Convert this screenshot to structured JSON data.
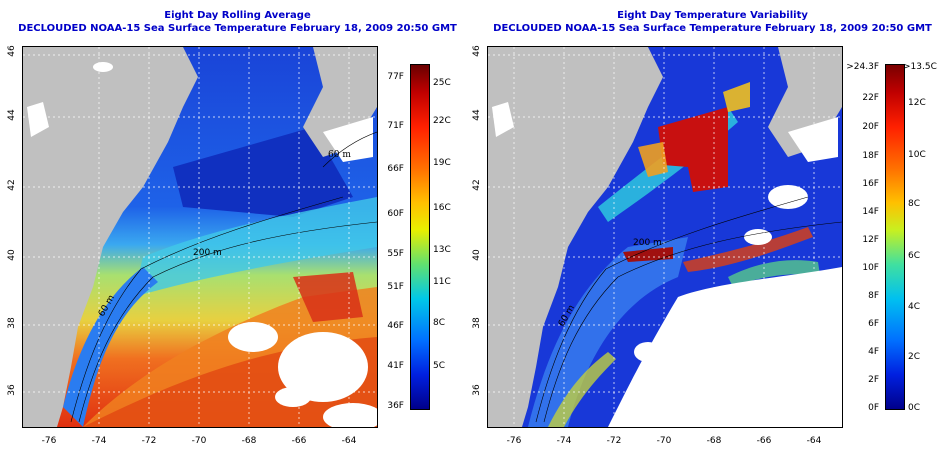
{
  "left_panel": {
    "title": "Eight Day Rolling Average",
    "subtitle": "DECLOUDED NOAA-15 Sea Surface Temperature February 18, 2009 20:50 GMT",
    "lat_ticks": [
      "46",
      "44",
      "42",
      "40",
      "38",
      "36"
    ],
    "lon_ticks": [
      "-76",
      "-74",
      "-72",
      "-70",
      "-68",
      "-66",
      "-64"
    ],
    "colorbar_f": [
      "77F",
      "71F",
      "66F",
      "60F",
      "55F",
      "51F",
      "46F",
      "41F",
      "36F"
    ],
    "colorbar_c": [
      "25C",
      "22C",
      "19C",
      "16C",
      "13C",
      "11C",
      "8C",
      "5C"
    ],
    "contour_labels": [
      "200 m",
      "60 m",
      "60 m"
    ]
  },
  "right_panel": {
    "title": "Eight Day Temperature Variability",
    "subtitle": "DECLOUDED NOAA-15 Sea Surface Temperature February 18, 2009 20:50 GMT",
    "lat_ticks": [
      "46",
      "44",
      "42",
      "40",
      "38",
      "36"
    ],
    "lon_ticks": [
      "-76",
      "-74",
      "-72",
      "-70",
      "-68",
      "-66",
      "-64"
    ],
    "colorbar_f": [
      ">24.3F",
      "22F",
      "20F",
      "18F",
      "16F",
      "14F",
      "12F",
      "10F",
      "8F",
      "6F",
      "4F",
      "2F",
      "0F"
    ],
    "colorbar_c": [
      ">13.5C",
      "12C",
      "10C",
      "8C",
      "6C",
      "4C",
      "2C",
      "0C"
    ],
    "contour_labels": [
      "200 m",
      "60 m"
    ]
  },
  "colors": {
    "land": "#c0c0c0",
    "title": "#0000c8"
  }
}
